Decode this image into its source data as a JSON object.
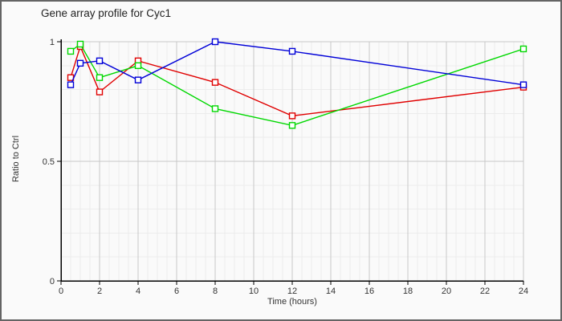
{
  "page": {
    "background": "#fafafa",
    "border_color": "#646464"
  },
  "chart_data": {
    "type": "line",
    "title": "Gene array profile for Cyc1",
    "xlabel": "Time (hours)",
    "ylabel": "Ratio to Ctrl",
    "xlim": [
      0,
      24
    ],
    "ylim": [
      0,
      1
    ],
    "x_tick_values": [
      0,
      2,
      4,
      6,
      8,
      10,
      12,
      14,
      16,
      18,
      20,
      22,
      24
    ],
    "x_tick_labels": [
      "0",
      "2",
      "4",
      "6",
      "8",
      "10",
      "12",
      "14",
      "16",
      "18",
      "20",
      "22",
      "24"
    ],
    "y_tick_values": [
      0,
      0.5,
      1
    ],
    "y_tick_labels": [
      "0",
      "0.5",
      "1"
    ],
    "x_minor_step": 0.5,
    "y_minor_step": 0.1,
    "grid": true,
    "legend_position": "none",
    "marker": "open-square",
    "x": [
      0.5,
      1,
      2,
      4,
      8,
      12,
      24
    ],
    "series": [
      {
        "name": "red-series",
        "color": "#e00000",
        "values": [
          0.85,
          0.98,
          0.79,
          0.92,
          0.83,
          0.69,
          0.81
        ]
      },
      {
        "name": "green-series",
        "color": "#00d800",
        "values": [
          0.96,
          0.99,
          0.85,
          0.9,
          0.72,
          0.65,
          0.97
        ]
      },
      {
        "name": "blue-series",
        "color": "#0000d8",
        "values": [
          0.82,
          0.91,
          0.92,
          0.84,
          1.0,
          0.96,
          0.82
        ]
      }
    ],
    "style": {
      "grid_major_color": "#c8c8c8",
      "grid_minor_color": "#ececec",
      "axis_color": "#000000",
      "tick_label_color": "#333333"
    }
  }
}
